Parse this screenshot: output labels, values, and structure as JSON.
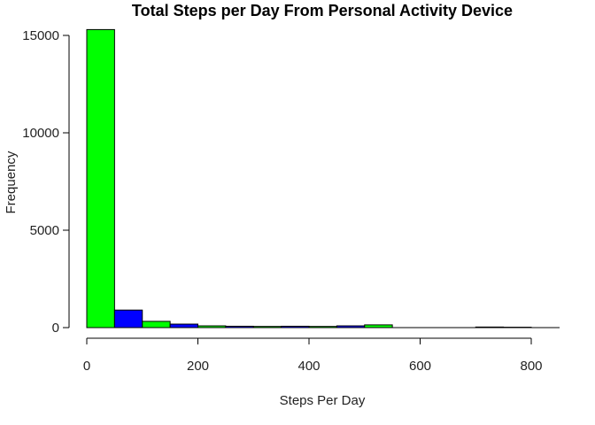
{
  "chart_data": {
    "type": "bar",
    "title": "Total Steps per Day From Personal Activity Device",
    "xlabel": "Steps Per Day",
    "ylabel": "Frequency",
    "xlim": [
      0,
      850
    ],
    "ylim": [
      0,
      15500
    ],
    "x_ticks": [
      "0",
      "200",
      "400",
      "600",
      "800"
    ],
    "y_ticks": [
      "0",
      "5000",
      "10000",
      "15000"
    ],
    "bins": [
      {
        "x0": 0,
        "x1": 50,
        "value": 15300,
        "color": "#00ff00"
      },
      {
        "x0": 50,
        "x1": 100,
        "value": 900,
        "color": "#0000ff"
      },
      {
        "x0": 100,
        "x1": 150,
        "value": 320,
        "color": "#00ff00"
      },
      {
        "x0": 150,
        "x1": 200,
        "value": 180,
        "color": "#0000ff"
      },
      {
        "x0": 200,
        "x1": 250,
        "value": 90,
        "color": "#00ff00"
      },
      {
        "x0": 250,
        "x1": 300,
        "value": 70,
        "color": "#0000ff"
      },
      {
        "x0": 300,
        "x1": 350,
        "value": 60,
        "color": "#00ff00"
      },
      {
        "x0": 350,
        "x1": 400,
        "value": 70,
        "color": "#0000ff"
      },
      {
        "x0": 400,
        "x1": 450,
        "value": 60,
        "color": "#00ff00"
      },
      {
        "x0": 450,
        "x1": 500,
        "value": 90,
        "color": "#0000ff"
      },
      {
        "x0": 500,
        "x1": 550,
        "value": 140,
        "color": "#00ff00"
      },
      {
        "x0": 550,
        "x1": 600,
        "value": 0,
        "color": "#0000ff"
      },
      {
        "x0": 600,
        "x1": 650,
        "value": 0,
        "color": "#00ff00"
      },
      {
        "x0": 650,
        "x1": 700,
        "value": 0,
        "color": "#0000ff"
      },
      {
        "x0": 700,
        "x1": 750,
        "value": 30,
        "color": "#00ff00"
      },
      {
        "x0": 750,
        "x1": 800,
        "value": 20,
        "color": "#0000ff"
      }
    ],
    "grid": false,
    "legend": "none"
  }
}
